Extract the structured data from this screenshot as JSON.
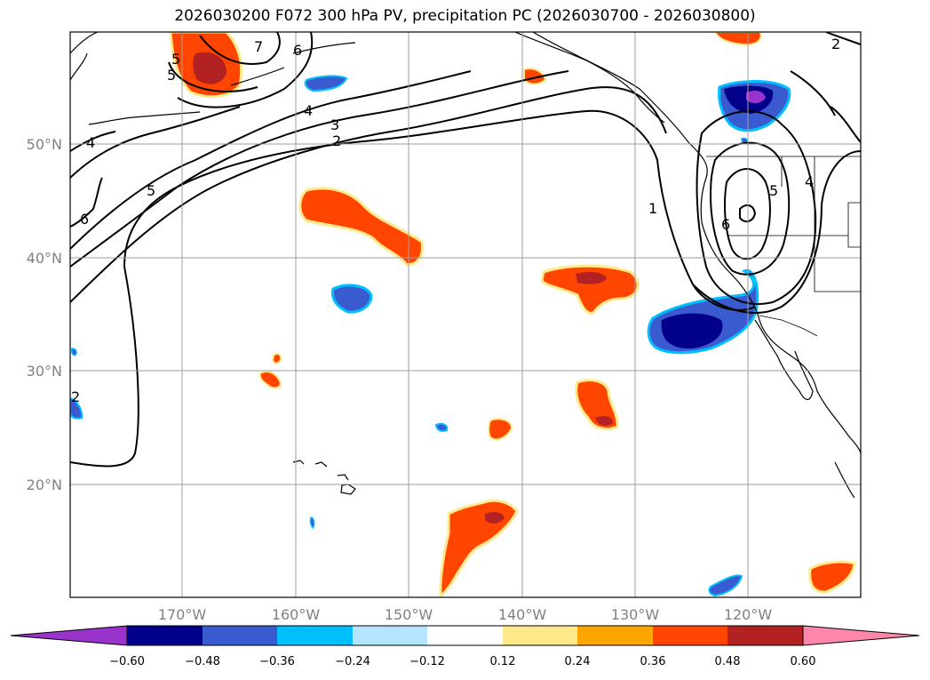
{
  "title": "2026030200 F072 300 hPa PV, precipitation PC (2026030700 - 2026030800)",
  "map": {
    "lon_labels": [
      "170°W",
      "160°W",
      "150°W",
      "140°W",
      "130°W",
      "120°W"
    ],
    "lat_labels": [
      "50°N",
      "40°N",
      "30°N",
      "20°N"
    ],
    "contour_labels": [
      "7",
      "6",
      "5",
      "4",
      "3",
      "2",
      "4",
      "5",
      "6",
      "1",
      "6",
      "5",
      "4",
      "5",
      "2",
      "2"
    ]
  },
  "colorbar": {
    "colors": [
      "#9933cc",
      "#00008b",
      "#3a5bd0",
      "#00bfff",
      "#b3e5ff",
      "#ffffff",
      "#ffe98a",
      "#ffa500",
      "#ff4500",
      "#b22222",
      "#ff88aa"
    ],
    "tick_labels": [
      "−0.60",
      "−0.48",
      "−0.36",
      "−0.24",
      "−0.12",
      "0.12",
      "0.24",
      "0.36",
      "0.48",
      "0.60"
    ]
  },
  "legend_colors": {
    "neg_strong": "#00008b",
    "neg_mid": "#3a5bd0",
    "neg_light": "#00bfff",
    "pos_mid": "#ff4500",
    "pos_strong": "#b22222",
    "pos_light": "#ffe98a",
    "grid": "#9e9e9e"
  }
}
